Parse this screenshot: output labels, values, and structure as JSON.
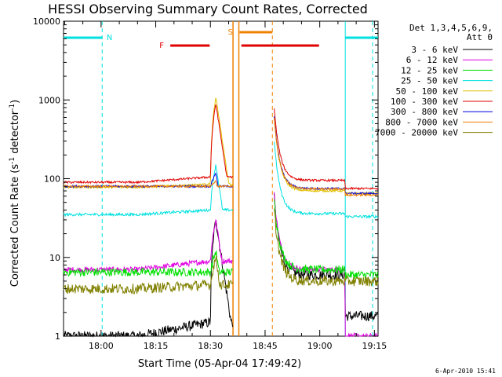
{
  "chart_data": {
    "type": "line",
    "title": "HESSI Observing Summary Count Rates, Corrected",
    "xlabel": "Start Time (05-Apr-04 17:49:42)",
    "ylabel": "Corrected Count Rate (s",
    "ylabel_sup1": "-1",
    "ylabel_mid": " detector",
    "ylabel_sup2": "-1",
    "ylabel_end": ")",
    "yscale": "log",
    "ylim": [
      1,
      10000
    ],
    "xlim_min": [
      49.7,
      136
    ],
    "xticks": [
      "18:00",
      "18:15",
      "18:30",
      "18:45",
      "19:00",
      "19:15"
    ],
    "xtick_min": [
      60,
      75,
      90,
      105,
      120,
      135
    ],
    "yticks": [
      "1",
      "10",
      "100",
      "1000",
      "10000"
    ],
    "ytick_values": [
      1,
      10,
      100,
      1000,
      10000
    ],
    "timestamp": "6-Apr-2010 15:41",
    "legend": {
      "header1": "Det 1,3,4,5,6,9,",
      "header2": "Att 0",
      "placement": "right"
    },
    "series": [
      {
        "name": "3 - 6 keV",
        "color": "#000000",
        "levels": [
          1.0,
          1.5,
          30,
          7,
          6,
          1.8
        ],
        "noise": 0.15
      },
      {
        "name": "6 - 12 keV",
        "color": "#e000e0",
        "levels": [
          7,
          9,
          30,
          8,
          7,
          1.0
        ],
        "noise": 0.08
      },
      {
        "name": "12 - 25 keV",
        "color": "#00e000",
        "levels": [
          6.5,
          6.5,
          12,
          7,
          7,
          6
        ],
        "noise": 0.12
      },
      {
        "name": "25 - 50 keV",
        "color": "#00e0e0",
        "levels": [
          35,
          40,
          150,
          38,
          36,
          33
        ],
        "noise": 0.04
      },
      {
        "name": "50 - 100 keV",
        "color": "#e0c000",
        "levels": [
          78,
          85,
          1100,
          75,
          70,
          65
        ],
        "noise": 0.03
      },
      {
        "name": "100 - 300 keV",
        "color": "#e00000",
        "levels": [
          90,
          105,
          900,
          100,
          95,
          75
        ],
        "noise": 0.03
      },
      {
        "name": "300 - 800 keV",
        "color": "#0000e0",
        "levels": [
          80,
          80,
          120,
          78,
          75,
          65
        ],
        "noise": 0.03
      },
      {
        "name": "800 - 7000 keV",
        "color": "#f08000",
        "levels": [
          80,
          80,
          95,
          76,
          74,
          62
        ],
        "noise": 0.03
      },
      {
        "name": "7000 - 20000 keV",
        "color": "#808000",
        "levels": [
          4,
          4.5,
          10,
          5,
          5,
          5
        ],
        "noise": 0.15
      }
    ],
    "annotations": [
      {
        "label": "N",
        "color": "#00e0e0"
      },
      {
        "label": "S",
        "color": "#f08000"
      },
      {
        "label": "F",
        "color": "#e00000"
      }
    ]
  }
}
